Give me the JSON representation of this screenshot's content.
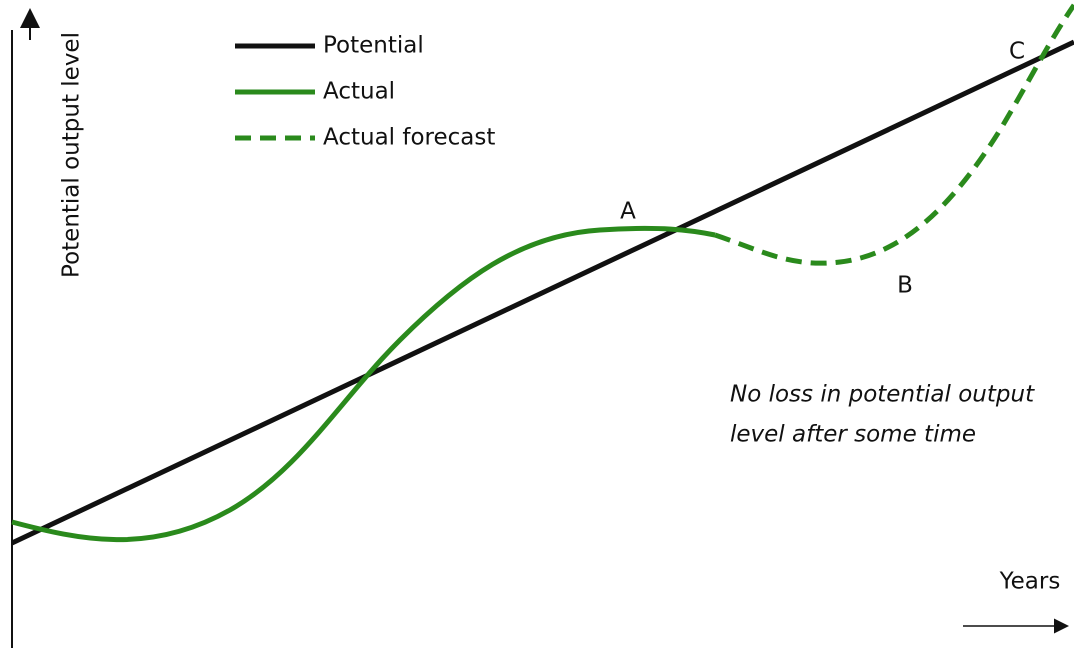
{
  "axes": {
    "y_label": "Potential output level",
    "x_label": "Years"
  },
  "legend": [
    "Potential",
    "Actual",
    "Actual forecast"
  ],
  "points": [
    "A",
    "B",
    "C"
  ],
  "annotation": [
    "No loss in potential output",
    "level after some time"
  ]
}
